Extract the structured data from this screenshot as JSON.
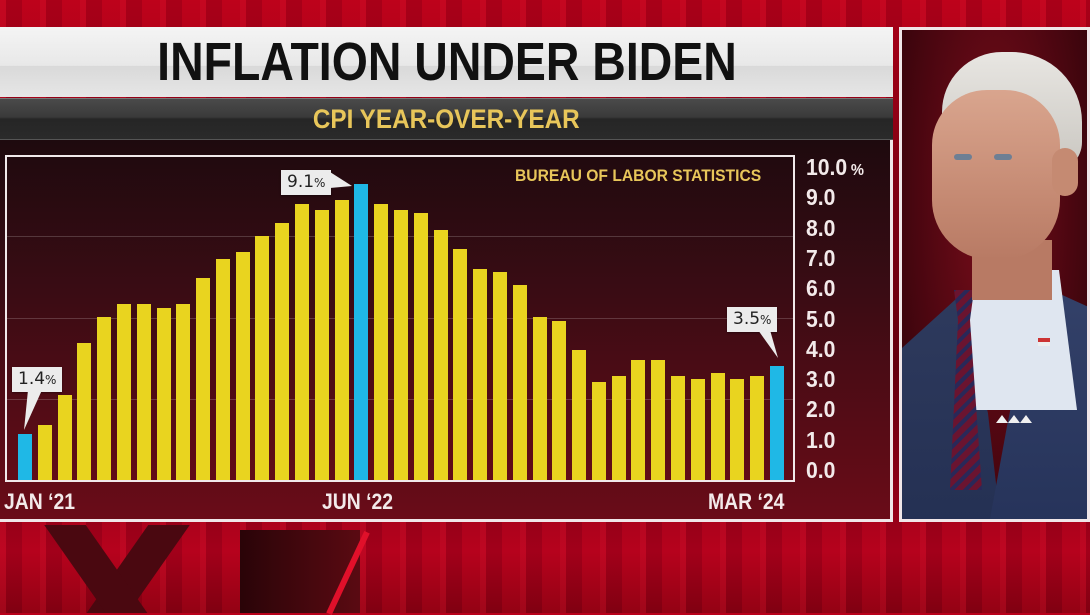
{
  "header": {
    "title": "INFLATION UNDER BIDEN",
    "subtitle": "CPI YEAR-OVER-YEAR"
  },
  "source_label": "BUREAU OF LABOR STATISTICS",
  "callouts": {
    "first": "1.4",
    "peak": "9.1",
    "last": "3.5",
    "unit": "%"
  },
  "y_axis": {
    "ticks": [
      "10.0",
      "9.0",
      "8.0",
      "7.0",
      "6.0",
      "5.0",
      "4.0",
      "3.0",
      "2.0",
      "1.0",
      "0.0"
    ],
    "unit": "%"
  },
  "x_axis": {
    "labels": [
      "JAN ‘21",
      "JUN ‘22",
      "MAR ‘24"
    ]
  },
  "colors": {
    "bar_default": "#e9d41f",
    "bar_highlight": "#1fb8e6",
    "accent_gold": "#e8c65a",
    "background_red": "#8a0014"
  },
  "photo": {
    "subject": "portrait-of-joe-biden"
  },
  "chart_data": {
    "type": "bar",
    "title": "INFLATION UNDER BIDEN",
    "subtitle": "CPI YEAR-OVER-YEAR",
    "source": "BUREAU OF LABOR STATISTICS",
    "xlabel": "",
    "ylabel": "%",
    "ylim": [
      0,
      10
    ],
    "yticks": [
      0,
      1,
      2,
      3,
      4,
      5,
      6,
      7,
      8,
      9,
      10
    ],
    "grid": true,
    "legend": null,
    "tick_labels_x": [
      "JAN '21",
      "JUN '22",
      "MAR '24"
    ],
    "categories": [
      "Jan 2021",
      "Feb 2021",
      "Mar 2021",
      "Apr 2021",
      "May 2021",
      "Jun 2021",
      "Jul 2021",
      "Aug 2021",
      "Sep 2021",
      "Oct 2021",
      "Nov 2021",
      "Dec 2021",
      "Jan 2022",
      "Feb 2022",
      "Mar 2022",
      "Apr 2022",
      "May 2022",
      "Jun 2022",
      "Jul 2022",
      "Aug 2022",
      "Sep 2022",
      "Oct 2022",
      "Nov 2022",
      "Dec 2022",
      "Jan 2023",
      "Feb 2023",
      "Mar 2023",
      "Apr 2023",
      "May 2023",
      "Jun 2023",
      "Jul 2023",
      "Aug 2023",
      "Sep 2023",
      "Oct 2023",
      "Nov 2023",
      "Dec 2023",
      "Jan 2024",
      "Feb 2024",
      "Mar 2024"
    ],
    "values": [
      1.4,
      1.7,
      2.6,
      4.2,
      5.0,
      5.4,
      5.4,
      5.3,
      5.4,
      6.2,
      6.8,
      7.0,
      7.5,
      7.9,
      8.5,
      8.3,
      8.6,
      9.1,
      8.5,
      8.3,
      8.2,
      7.7,
      7.1,
      6.5,
      6.4,
      6.0,
      5.0,
      4.9,
      4.0,
      3.0,
      3.2,
      3.7,
      3.7,
      3.2,
      3.1,
      3.3,
      3.1,
      3.2,
      3.5
    ],
    "highlighted": [
      0,
      17,
      38
    ],
    "annotations": [
      {
        "index": 0,
        "label": "1.4%"
      },
      {
        "index": 17,
        "label": "9.1%"
      },
      {
        "index": 38,
        "label": "3.5%"
      }
    ]
  }
}
